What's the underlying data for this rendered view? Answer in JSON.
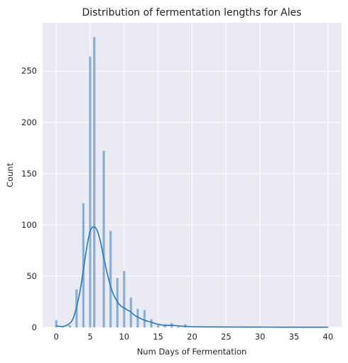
{
  "chart_data": {
    "type": "histogram",
    "title": "Distribution of fermentation lengths for Ales",
    "xlabel": "Num Days of Fermentation",
    "ylabel": "Count",
    "xlim": [
      -2,
      42
    ],
    "ylim": [
      0,
      297
    ],
    "xticks": [
      0,
      5,
      10,
      15,
      20,
      25,
      30,
      35,
      40
    ],
    "yticks": [
      0,
      50,
      100,
      150,
      200,
      250
    ],
    "grid": true,
    "bar_width": 0.3,
    "bars": [
      {
        "x": 0,
        "count": 7
      },
      {
        "x": 1,
        "count": 1
      },
      {
        "x": 2,
        "count": 2
      },
      {
        "x": 3,
        "count": 37
      },
      {
        "x": 4,
        "count": 121
      },
      {
        "x": 5,
        "count": 264
      },
      {
        "x": 5.6,
        "count": 283
      },
      {
        "x": 7,
        "count": 172
      },
      {
        "x": 8,
        "count": 94
      },
      {
        "x": 9,
        "count": 48
      },
      {
        "x": 10,
        "count": 55
      },
      {
        "x": 11,
        "count": 29
      },
      {
        "x": 12,
        "count": 18
      },
      {
        "x": 13,
        "count": 17
      },
      {
        "x": 14,
        "count": 8
      },
      {
        "x": 15,
        "count": 2
      },
      {
        "x": 16,
        "count": 3
      },
      {
        "x": 17,
        "count": 4
      },
      {
        "x": 18,
        "count": 1
      },
      {
        "x": 19,
        "count": 3
      }
    ],
    "kde": {
      "x": [
        0,
        1,
        2,
        2.5,
        3,
        3.5,
        4,
        4.5,
        5,
        5.5,
        6,
        6.5,
        7,
        7.5,
        8,
        8.5,
        9,
        9.5,
        10,
        10.5,
        11,
        11.5,
        12,
        12.5,
        13,
        13.5,
        14,
        15,
        16,
        17,
        18,
        19,
        20,
        22,
        25,
        30,
        35,
        40
      ],
      "y": [
        1.5,
        1,
        4,
        9,
        20,
        35,
        56,
        78,
        94,
        98,
        95,
        84,
        68,
        53,
        40,
        31,
        25,
        21,
        19,
        17,
        15,
        12,
        10,
        8.5,
        7,
        6,
        5,
        3,
        2,
        2,
        1.5,
        1,
        0.7,
        0.5,
        0.4,
        0.3,
        0.2,
        0.2
      ]
    },
    "colors": {
      "background": "#eaeaf2",
      "grid": "#ffffff",
      "bar_fill": "#6f9ec9",
      "bar_edge": "#9dbcd9",
      "kde_line": "#2a77b4"
    }
  }
}
